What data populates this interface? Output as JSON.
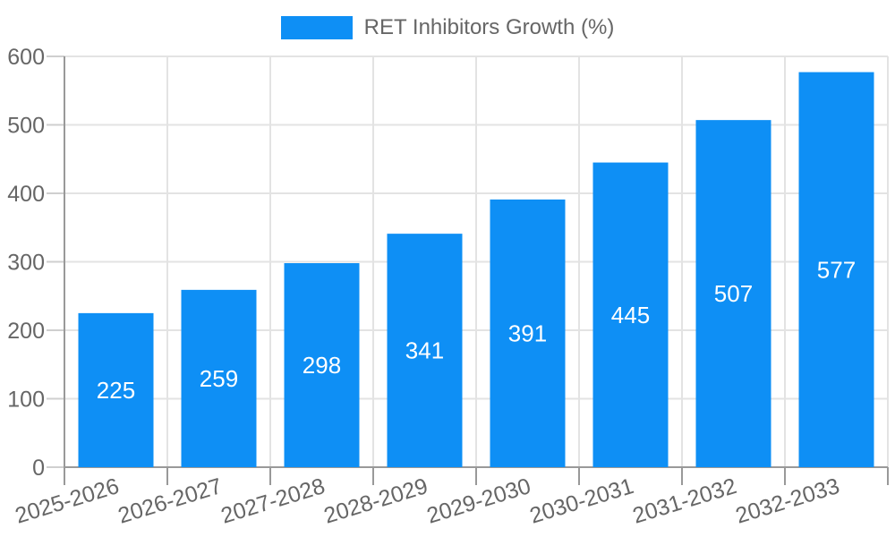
{
  "legend": {
    "label": "RET Inhibitors Growth (%)"
  },
  "colors": {
    "bar": "#0E8FF5",
    "grid": "#E3E3E3",
    "axis": "#999999",
    "y_tick": "#CFCFCF",
    "x_tick": "#999999",
    "tick_label": "#666666",
    "legend_label": "#666666",
    "value_label": "#FFFFFF",
    "background": "#FFFFFF"
  },
  "chart_data": {
    "type": "bar",
    "title": "RET Inhibitors Growth (%)",
    "categories": [
      "2025-2026",
      "2026-2027",
      "2027-2028",
      "2028-2029",
      "2029-2030",
      "2030-2031",
      "2031-2032",
      "2032-2033"
    ],
    "series": [
      {
        "name": "RET Inhibitors Growth (%)",
        "values": [
          225,
          259,
          298,
          341,
          391,
          445,
          507,
          577
        ]
      }
    ],
    "xlabel": "",
    "ylabel": "",
    "ylim": [
      0,
      600
    ],
    "yticks": [
      0,
      100,
      200,
      300,
      400,
      500,
      600
    ],
    "grid": true,
    "legend_position": "top-center",
    "value_label_position": "inside-center",
    "x_tick_rotation_deg": -17
  }
}
